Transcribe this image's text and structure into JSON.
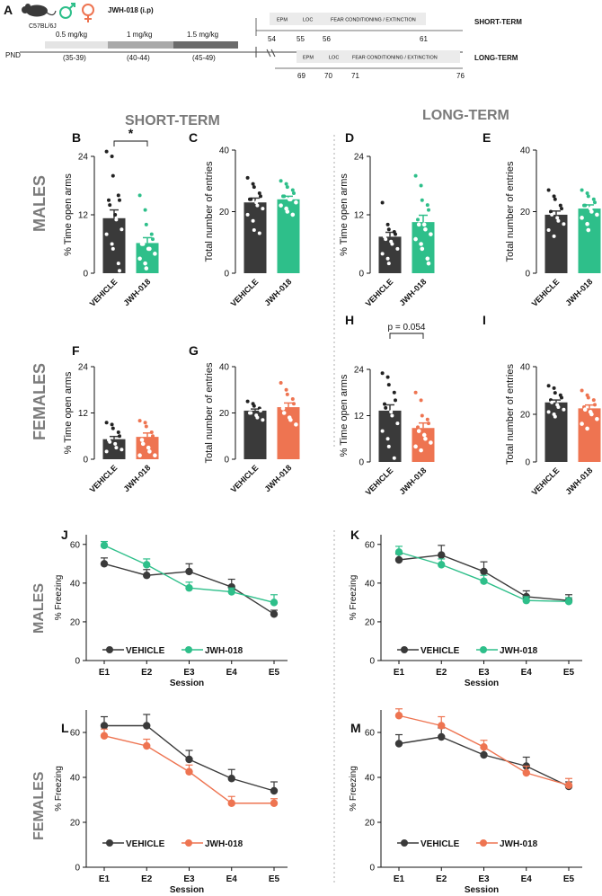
{
  "colors": {
    "vehicle": "#3a3a3a",
    "jwh_male": "#2ebf8a",
    "jwh_female": "#ee7451",
    "grey_label": "#7a7a7a"
  },
  "panel_a": {
    "label": "A",
    "mouse": "C57BL/6J",
    "drug": "JWH-018 (i.p)",
    "pnd": "PND",
    "doses": [
      {
        "dose": "0.5 mg/kg",
        "range": "(35-39)",
        "shade": "#e4e4e4"
      },
      {
        "dose": "1 mg/kg",
        "range": "(40-44)",
        "shade": "#a9a9a9"
      },
      {
        "dose": "1.5 mg/kg",
        "range": "(45-49)",
        "shade": "#6b6b6b"
      }
    ],
    "short_term": {
      "label": "SHORT-TERM",
      "tests": [
        {
          "name": "EPM",
          "day": "54"
        },
        {
          "name": "LOC",
          "day": "55"
        },
        {
          "name": "FEAR CONDITIONING / EXTINCTION",
          "day": "56"
        }
      ],
      "end_day": "61"
    },
    "long_term": {
      "label": "LONG-TERM",
      "tests": [
        {
          "name": "EPM",
          "day": "69"
        },
        {
          "name": "LOC",
          "day": "70"
        },
        {
          "name": "FEAR CONDITIONING / EXTINCTION",
          "day": "71"
        }
      ],
      "end_day": "76"
    }
  },
  "row_labels": {
    "males": "MALES",
    "females": "FEMALES",
    "short_term": "SHORT-TERM",
    "long_term": "LONG-TERM"
  },
  "chart_data": [
    {
      "panel": "B",
      "type": "bar",
      "categories": [
        "VEHICLE",
        "JWH-018"
      ],
      "ylabel": "% Time open arms",
      "ylim": [
        0,
        24
      ],
      "yticks": [
        "0",
        "12",
        "24"
      ],
      "means": [
        11.3,
        6.2
      ],
      "sem": [
        1.7,
        1.1
      ],
      "sig": "*",
      "group": "male",
      "points": [
        [
          25,
          24,
          20,
          16,
          15,
          15,
          14,
          12,
          11,
          9,
          8,
          6,
          5,
          2,
          0.5
        ],
        [
          16,
          13,
          10,
          8,
          7,
          6,
          6,
          5,
          5,
          4,
          3,
          2,
          1
        ]
      ]
    },
    {
      "panel": "C",
      "type": "bar",
      "categories": [
        "VEHICLE",
        "JWH-018"
      ],
      "ylabel": "Total number of entries",
      "ylim": [
        0,
        40
      ],
      "yticks": [
        "0",
        "20",
        "40"
      ],
      "means": [
        23.0,
        24.0
      ],
      "sem": [
        1.4,
        1.0
      ],
      "group": "male",
      "points": [
        [
          31,
          29,
          28,
          26,
          25,
          24,
          24,
          23,
          22,
          21,
          19,
          17,
          14,
          13
        ],
        [
          30,
          29,
          28,
          27,
          26,
          25,
          25,
          24,
          24,
          23,
          22,
          21,
          20,
          19
        ]
      ]
    },
    {
      "panel": "D",
      "type": "bar",
      "categories": [
        "VEHICLE",
        "JWH-018"
      ],
      "ylabel": "% Time open arms",
      "ylim": [
        0,
        24
      ],
      "yticks": [
        "0",
        "12",
        "24"
      ],
      "means": [
        7.5,
        10.5
      ],
      "sem": [
        0.9,
        1.4
      ],
      "group": "male",
      "points": [
        [
          14.5,
          10,
          9,
          8.5,
          8,
          7.5,
          7,
          6.5,
          6,
          5,
          4,
          3,
          2
        ],
        [
          20,
          18,
          15,
          14,
          13,
          11,
          10,
          10,
          9,
          8,
          7,
          6,
          5,
          3,
          2
        ]
      ]
    },
    {
      "panel": "E",
      "type": "bar",
      "categories": [
        "VEHICLE",
        "JWH-018"
      ],
      "ylabel": "Total number of entries",
      "ylim": [
        0,
        40
      ],
      "yticks": [
        "0",
        "20",
        "40"
      ],
      "means": [
        19.0,
        21.0
      ],
      "sem": [
        1.2,
        1.2
      ],
      "group": "male",
      "points": [
        [
          27,
          25,
          24,
          22,
          21,
          20,
          19,
          18,
          17,
          16,
          14,
          12
        ],
        [
          27,
          26,
          25,
          24,
          23,
          22,
          22,
          21,
          20,
          19,
          18,
          16,
          14
        ]
      ]
    },
    {
      "panel": "F",
      "type": "bar",
      "categories": [
        "VEHICLE",
        "JWH-018"
      ],
      "ylabel": "% Time open arms",
      "ylim": [
        0,
        24
      ],
      "yticks": [
        "0",
        "12",
        "24"
      ],
      "means": [
        5.2,
        5.8
      ],
      "sem": [
        0.7,
        1.0
      ],
      "group": "female",
      "points": [
        [
          9.5,
          9,
          8,
          7,
          6,
          5,
          4.5,
          4,
          3,
          2.5,
          2
        ],
        [
          10,
          9.5,
          8.5,
          7,
          6,
          5,
          4,
          3,
          2,
          1,
          1
        ]
      ]
    },
    {
      "panel": "G",
      "type": "bar",
      "categories": [
        "VEHICLE",
        "JWH-018"
      ],
      "ylabel": "Total number of entries",
      "ylim": [
        0,
        40
      ],
      "yticks": [
        "0",
        "20",
        "40"
      ],
      "means": [
        21.0,
        22.5
      ],
      "sem": [
        0.7,
        1.8
      ],
      "group": "female",
      "points": [
        [
          25,
          24,
          23,
          22,
          21,
          20,
          20,
          19,
          18,
          17
        ],
        [
          33,
          30,
          28,
          26,
          24,
          22,
          20,
          18,
          17,
          15
        ]
      ]
    },
    {
      "panel": "H",
      "type": "bar",
      "categories": [
        "VEHICLE",
        "JWH-018"
      ],
      "ylabel": "% Time open arms",
      "ylim": [
        0,
        24
      ],
      "yticks": [
        "0",
        "12",
        "24"
      ],
      "means": [
        13.3,
        8.8
      ],
      "sem": [
        1.5,
        1.3
      ],
      "sig": "p = 0.054",
      "group": "female",
      "points": [
        [
          23,
          22,
          20,
          18,
          16,
          15,
          14,
          13,
          12,
          10,
          8,
          6,
          4,
          1
        ],
        [
          18,
          16,
          12,
          11,
          10,
          9,
          8,
          7,
          6,
          5,
          4,
          3
        ]
      ]
    },
    {
      "panel": "I",
      "type": "bar",
      "categories": [
        "VEHICLE",
        "JWH-018"
      ],
      "ylabel": "Total number of entries",
      "ylim": [
        0,
        40
      ],
      "yticks": [
        "0",
        "20",
        "40"
      ],
      "means": [
        25.0,
        22.5
      ],
      "sem": [
        1.0,
        1.4
      ],
      "group": "female",
      "points": [
        [
          32,
          31,
          29,
          28,
          27,
          26,
          25,
          24,
          23,
          22,
          21,
          20,
          19
        ],
        [
          30,
          28,
          27,
          26,
          24,
          23,
          22,
          21,
          20,
          18,
          16,
          14
        ]
      ]
    },
    {
      "panel": "J",
      "type": "line",
      "x": [
        "E1",
        "E2",
        "E3",
        "E4",
        "E5"
      ],
      "xlabel": "Session",
      "ylabel": "% Freezing",
      "ylim": [
        0,
        65
      ],
      "yticks": [
        0,
        20,
        40,
        60
      ],
      "group": "male",
      "series": [
        {
          "name": "VEHICLE",
          "values": [
            50,
            44,
            46,
            38,
            24
          ],
          "sem": [
            3,
            3,
            4,
            4,
            2
          ]
        },
        {
          "name": "JWH-018",
          "values": [
            59.5,
            49.5,
            37.5,
            35.5,
            30
          ],
          "sem": [
            2,
            3,
            3,
            2,
            4
          ]
        }
      ]
    },
    {
      "panel": "K",
      "type": "line",
      "x": [
        "E1",
        "E2",
        "E3",
        "E4",
        "E5"
      ],
      "xlabel": "Session",
      "ylabel": "% Freezing",
      "ylim": [
        0,
        65
      ],
      "yticks": [
        0,
        20,
        40,
        60
      ],
      "group": "male",
      "series": [
        {
          "name": "VEHICLE",
          "values": [
            52,
            54.5,
            46,
            33,
            31
          ],
          "sem": [
            3,
            5,
            5,
            3,
            3
          ]
        },
        {
          "name": "JWH-018",
          "values": [
            56,
            49.5,
            41,
            31,
            30.5
          ],
          "sem": [
            3,
            3,
            3,
            2,
            2
          ]
        }
      ]
    },
    {
      "panel": "L",
      "type": "line",
      "x": [
        "E1",
        "E2",
        "E3",
        "E4",
        "E5"
      ],
      "xlabel": "Session",
      "ylabel": "% Freezing",
      "ylim": [
        0,
        70
      ],
      "yticks": [
        0,
        20,
        40,
        60
      ],
      "group": "female",
      "series": [
        {
          "name": "VEHICLE",
          "values": [
            63,
            63,
            48,
            39.5,
            34
          ],
          "sem": [
            4,
            5,
            4,
            4,
            4
          ]
        },
        {
          "name": "JWH-018",
          "values": [
            58.5,
            54,
            42.5,
            28.5,
            28.5
          ],
          "sem": [
            3,
            3,
            3,
            3,
            2
          ]
        }
      ]
    },
    {
      "panel": "M",
      "type": "line",
      "x": [
        "E1",
        "E2",
        "E3",
        "E4",
        "E5"
      ],
      "xlabel": "Session",
      "ylabel": "% Freezing",
      "ylim": [
        0,
        70
      ],
      "yticks": [
        0,
        20,
        40,
        60
      ],
      "group": "female",
      "series": [
        {
          "name": "VEHICLE",
          "values": [
            55,
            58,
            50,
            45,
            36
          ],
          "sem": [
            4,
            4,
            3,
            4,
            2
          ]
        },
        {
          "name": "JWH-018",
          "values": [
            67.5,
            63,
            53.5,
            42,
            36.5
          ],
          "sem": [
            3,
            4,
            3,
            3,
            3
          ]
        }
      ]
    }
  ]
}
